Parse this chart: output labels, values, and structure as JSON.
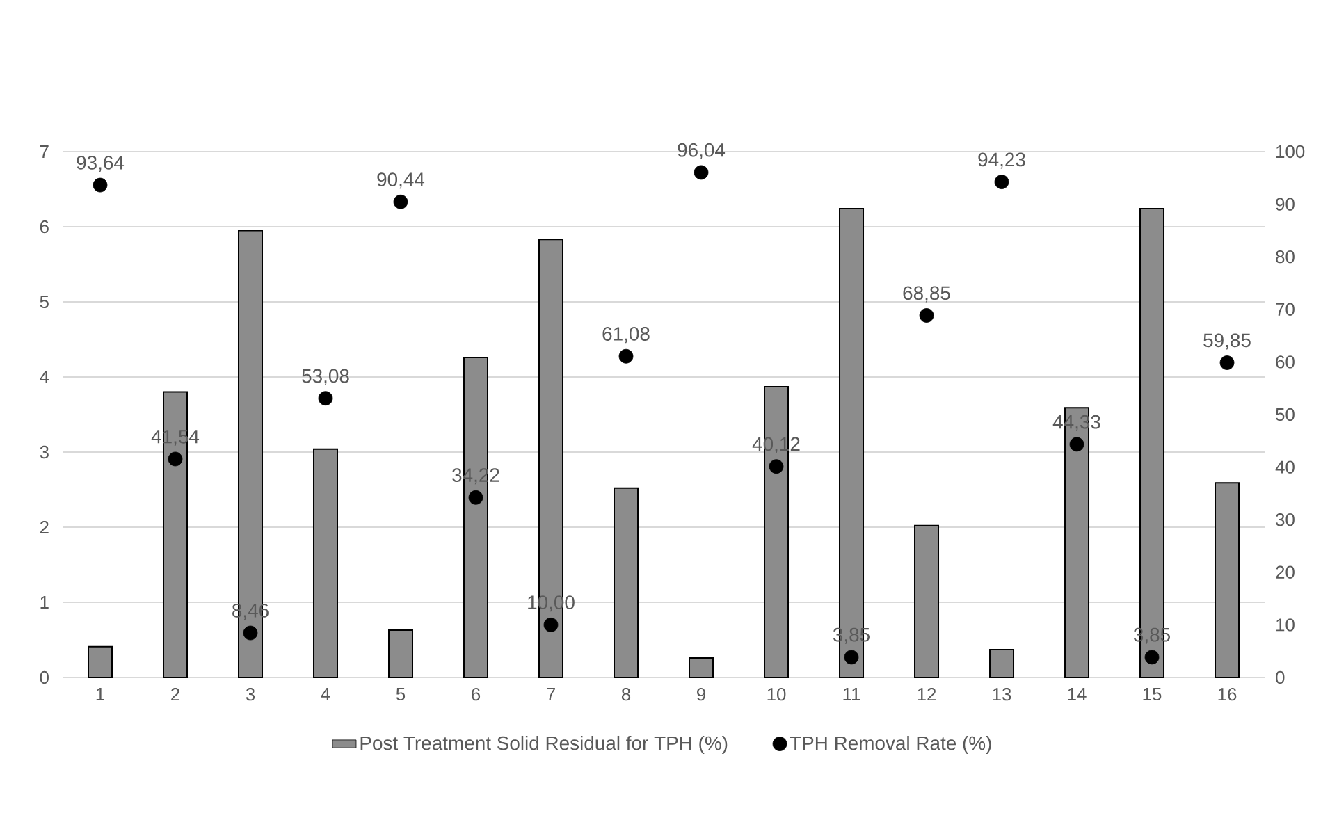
{
  "chart_data": {
    "type": "bar",
    "categories": [
      "1",
      "2",
      "3",
      "4",
      "5",
      "6",
      "7",
      "8",
      "9",
      "10",
      "11",
      "12",
      "13",
      "14",
      "15",
      "16"
    ],
    "series": [
      {
        "name": "Post Treatment Solid Residual for TPH (%)",
        "color": "#8c8c8c",
        "values": [
          0.41,
          3.8,
          5.95,
          3.04,
          0.63,
          4.26,
          5.83,
          2.52,
          0.26,
          3.87,
          6.24,
          2.02,
          0.37,
          3.59,
          6.24,
          2.59
        ]
      },
      {
        "name": "TPH Removal Rate (%)",
        "type": "scatter",
        "axis": "y2",
        "color": "#000000",
        "marker": "circle",
        "values": [
          93.64,
          41.54,
          8.46,
          53.08,
          90.44,
          34.22,
          10.0,
          61.08,
          96.04,
          40.12,
          3.85,
          68.85,
          94.23,
          44.33,
          3.85,
          59.85
        ],
        "value_labels": [
          "93,64",
          "41,54",
          "8,46",
          "53,08",
          "90,44",
          "34,22",
          "10,00",
          "61,08",
          "96,04",
          "40,12",
          "3,85",
          "68,85",
          "94,23",
          "44,33",
          "3,85",
          "59,85"
        ]
      }
    ],
    "ylim": [
      0,
      7
    ],
    "yticks": [
      0,
      1,
      2,
      3,
      4,
      5,
      6,
      7
    ],
    "y2lim": [
      0,
      100
    ],
    "y2ticks": [
      0,
      10,
      20,
      30,
      40,
      50,
      60,
      70,
      80,
      90,
      100
    ],
    "grid": "y",
    "legend": "bottom"
  }
}
